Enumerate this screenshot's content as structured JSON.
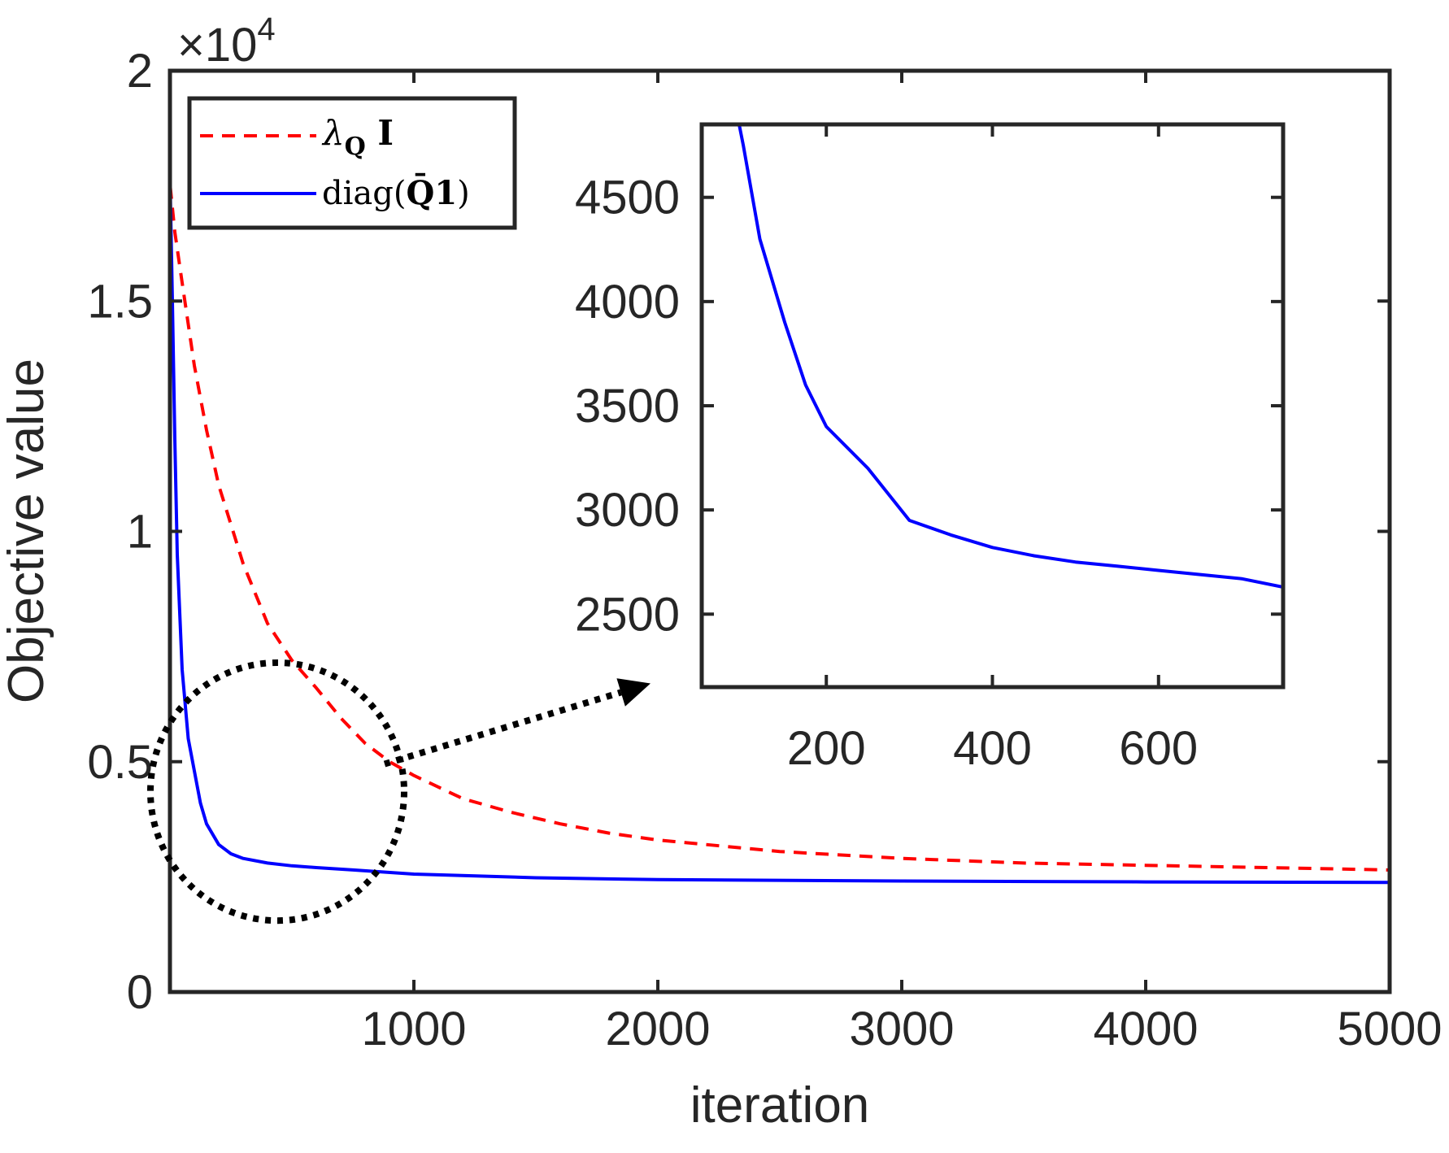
{
  "chart_data": [
    {
      "id": "main",
      "type": "line",
      "xlabel": "iteration",
      "ylabel": "Objective value",
      "xlim": [
        0,
        5000
      ],
      "ylim": [
        0,
        20000
      ],
      "y_exponent_label": "×10",
      "y_exponent_power": "4",
      "x_ticks": [
        {
          "value": 1000,
          "label": "1000"
        },
        {
          "value": 2000,
          "label": "2000"
        },
        {
          "value": 3000,
          "label": "3000"
        },
        {
          "value": 4000,
          "label": "4000"
        },
        {
          "value": 5000,
          "label": "5000"
        }
      ],
      "y_ticks": [
        {
          "value": 0,
          "label": "0"
        },
        {
          "value": 5000,
          "label": "0.5"
        },
        {
          "value": 10000,
          "label": "1"
        },
        {
          "value": 15000,
          "label": "1.5"
        },
        {
          "value": 20000,
          "label": "2"
        }
      ],
      "legend": {
        "position": "top-left",
        "entries": [
          {
            "series": "lambda",
            "symbol": "λ",
            "sub": "Q",
            "suffix": " I",
            "text": "λ_Q I"
          },
          {
            "series": "diag",
            "prefix": "diag(",
            "bar": "Q̄",
            "bold": "1",
            "suffix": ")",
            "text": "diag(Q̄1)"
          }
        ]
      },
      "series": [
        {
          "key": "lambda",
          "name": "λ_Q I",
          "color": "#ff0000",
          "style": "dashed",
          "x": [
            1,
            20,
            50,
            100,
            150,
            200,
            300,
            400,
            500,
            600,
            700,
            800,
            900,
            1000,
            1200,
            1400,
            1600,
            1800,
            2000,
            2500,
            3000,
            3500,
            4000,
            4500,
            5000
          ],
          "y": [
            17500,
            16500,
            15400,
            13600,
            12200,
            11000,
            9300,
            8000,
            7200,
            6600,
            5950,
            5400,
            5000,
            4700,
            4200,
            3900,
            3650,
            3450,
            3300,
            3050,
            2900,
            2800,
            2750,
            2700,
            2650
          ]
        },
        {
          "key": "diag",
          "name": "diag(Q̄1)",
          "color": "#0000ff",
          "style": "solid",
          "x": [
            1,
            10,
            20,
            30,
            50,
            75,
            100,
            125,
            150,
            200,
            250,
            300,
            400,
            500,
            600,
            750,
            1000,
            1500,
            2000,
            3000,
            4000,
            5000
          ],
          "y": [
            17500,
            15000,
            12000,
            9500,
            7000,
            5500,
            4800,
            4100,
            3650,
            3200,
            3000,
            2900,
            2800,
            2740,
            2700,
            2650,
            2560,
            2480,
            2440,
            2410,
            2390,
            2380
          ]
        }
      ],
      "annotations": [
        {
          "type": "ellipse",
          "style": "dotted",
          "center": [
            440,
            4350
          ],
          "radius": [
            520,
            2800
          ]
        },
        {
          "type": "arrow",
          "style": "dotted",
          "from": [
            880,
            4950
          ],
          "to": [
            1970,
            6700
          ]
        }
      ]
    },
    {
      "id": "inset",
      "type": "line",
      "xlim": [
        50,
        750
      ],
      "ylim": [
        2150,
        4850
      ],
      "x_ticks": [
        {
          "value": 200,
          "label": "200"
        },
        {
          "value": 400,
          "label": "400"
        },
        {
          "value": 600,
          "label": "600"
        }
      ],
      "y_ticks": [
        {
          "value": 2500,
          "label": "2500"
        },
        {
          "value": 3000,
          "label": "3000"
        },
        {
          "value": 3500,
          "label": "3500"
        },
        {
          "value": 4000,
          "label": "4000"
        },
        {
          "value": 4500,
          "label": "4500"
        }
      ],
      "series": [
        {
          "key": "diag",
          "name": "diag(Q̄1)",
          "color": "#0000ff",
          "style": "solid",
          "x": [
            95,
            100,
            120,
            150,
            175,
            200,
            250,
            300,
            350,
            400,
            450,
            500,
            550,
            600,
            650,
            700,
            750
          ],
          "y": [
            4850,
            4750,
            4300,
            3900,
            3600,
            3400,
            3200,
            2950,
            2880,
            2820,
            2780,
            2750,
            2730,
            2710,
            2690,
            2670,
            2630
          ]
        }
      ]
    }
  ]
}
